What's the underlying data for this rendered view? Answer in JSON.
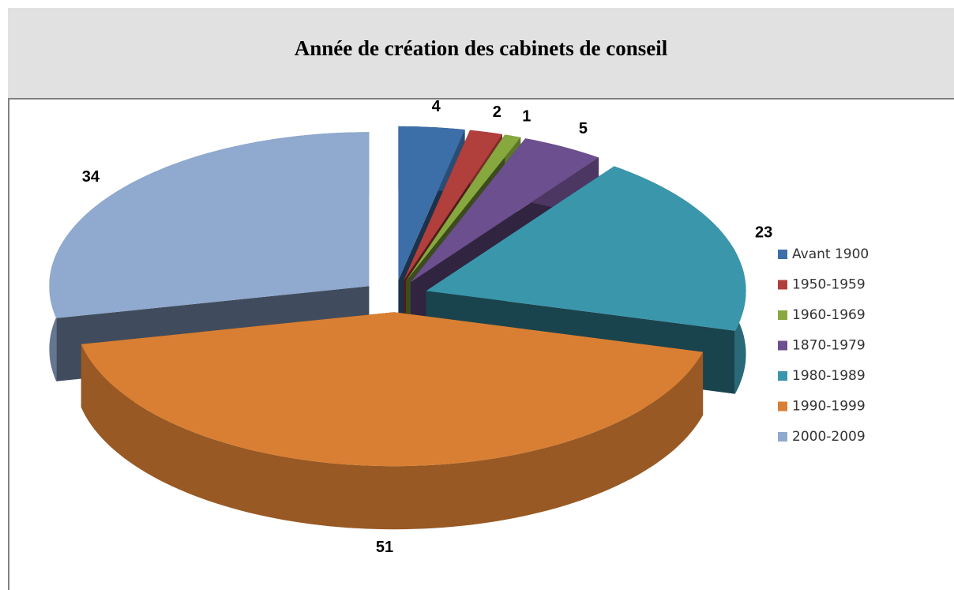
{
  "chart_data": {
    "type": "pie",
    "title": "Année de création des cabinets de conseil",
    "categories": [
      "Avant 1900",
      "1950-1959",
      "1960-1969",
      "1870-1979",
      "1980-1989",
      "1990-1999",
      "2000-2009"
    ],
    "values": [
      4,
      2,
      1,
      5,
      23,
      51,
      34
    ],
    "colors": [
      "#3c6ea8",
      "#b13f3c",
      "#86a83e",
      "#6c4f8e",
      "#3a96ab",
      "#d97f33",
      "#8fa9cf"
    ],
    "legend": "right"
  }
}
